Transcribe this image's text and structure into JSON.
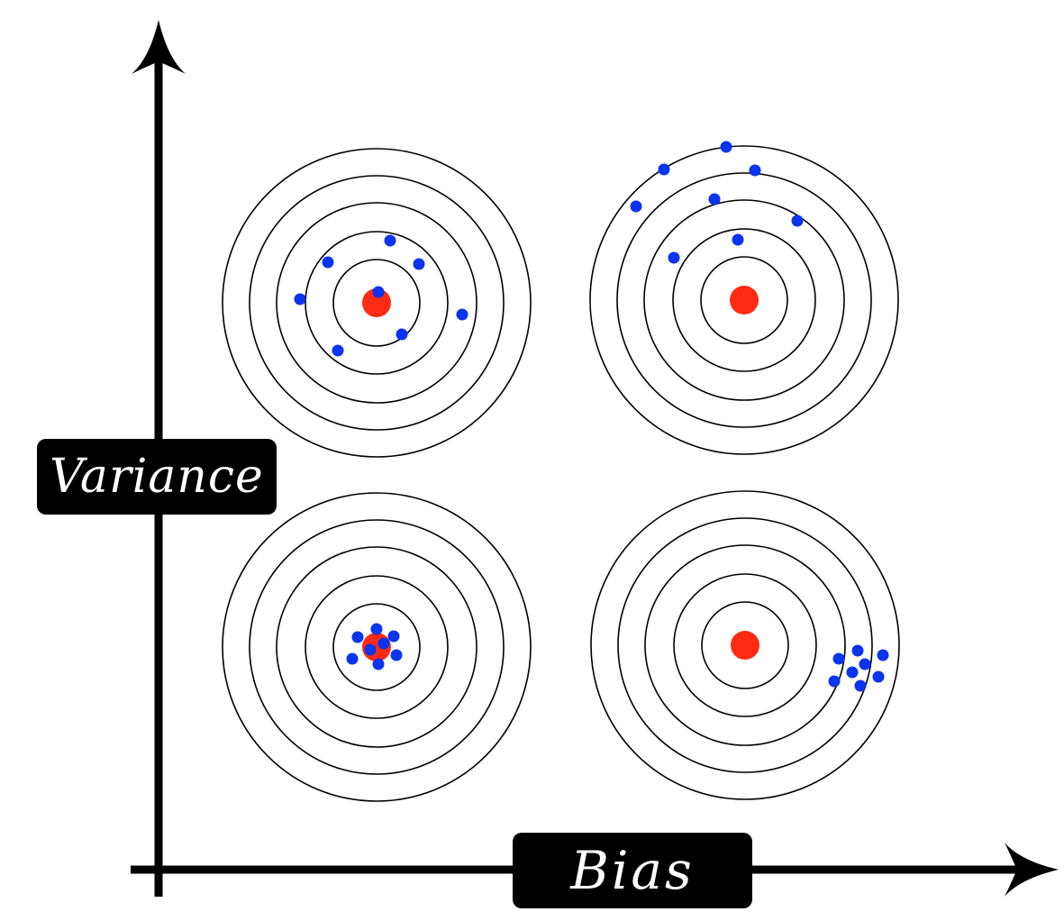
{
  "labels": {
    "y_axis": "Variance",
    "x_axis": "Bias"
  },
  "colors": {
    "axis": "#000000",
    "ring": "#000000",
    "bullseye": "#ff2a12",
    "shot": "#0a34ee",
    "label_background": "#000000",
    "label_text": "#ffffff"
  },
  "targets": [
    {
      "name": "high-variance-low-bias",
      "ring_count": 5
    },
    {
      "name": "high-variance-high-bias",
      "ring_count": 5
    },
    {
      "name": "low-variance-low-bias",
      "ring_count": 5
    },
    {
      "name": "low-variance-high-bias",
      "ring_count": 5
    }
  ]
}
